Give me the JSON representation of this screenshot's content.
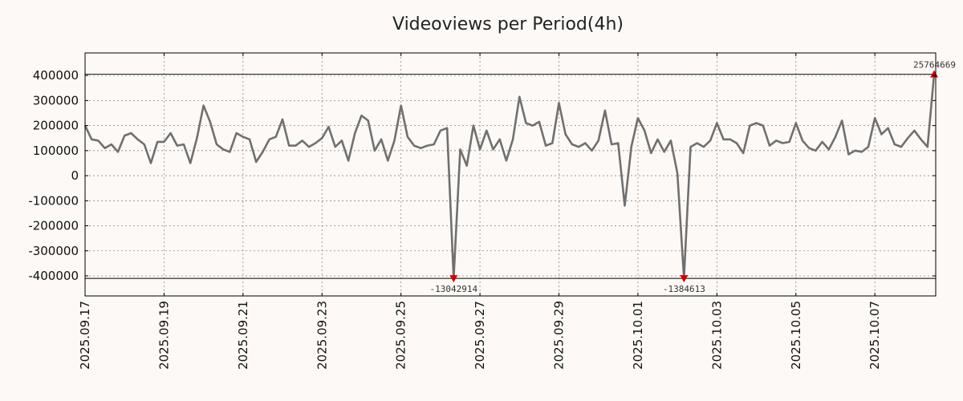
{
  "chart_data": {
    "type": "line",
    "title": "Videoviews per Period(4h)",
    "xlabel": "",
    "ylabel": "",
    "ylim": [
      -480000,
      490000
    ],
    "yticks": [
      400000,
      300000,
      200000,
      100000,
      0,
      -100000,
      -200000,
      -300000,
      -400000
    ],
    "ytick_labels": [
      "400000",
      "300000",
      "200000",
      "100000",
      "0",
      "-100000",
      "-200000",
      "-300000",
      "-400000"
    ],
    "xticks": [
      {
        "label": "2025.09.17",
        "i": 0
      },
      {
        "label": "2025.09.19",
        "i": 12
      },
      {
        "label": "2025.09.21",
        "i": 24
      },
      {
        "label": "2025.09.23",
        "i": 36
      },
      {
        "label": "2025.09.25",
        "i": 48
      },
      {
        "label": "2025.09.27",
        "i": 60
      },
      {
        "label": "2025.09.29",
        "i": 72
      },
      {
        "label": "2025.10.01",
        "i": 84
      },
      {
        "label": "2025.10.03",
        "i": 96
      },
      {
        "label": "2025.10.05",
        "i": 108
      },
      {
        "label": "2025.10.07",
        "i": 120
      }
    ],
    "clip_lines": {
      "upper": 405000,
      "lower": -410000
    },
    "series": [
      {
        "name": "Videoviews",
        "color": "#707070",
        "values": [
          200000,
          145000,
          140000,
          110000,
          125000,
          95000,
          160000,
          170000,
          145000,
          125000,
          50000,
          135000,
          135000,
          170000,
          120000,
          125000,
          50000,
          150000,
          280000,
          215000,
          125000,
          105000,
          95000,
          170000,
          155000,
          145000,
          55000,
          95000,
          145000,
          155000,
          225000,
          120000,
          120000,
          140000,
          115000,
          130000,
          150000,
          195000,
          115000,
          140000,
          60000,
          170000,
          240000,
          220000,
          100000,
          145000,
          60000,
          140000,
          280000,
          155000,
          120000,
          110000,
          120000,
          125000,
          180000,
          190000,
          -410000,
          105000,
          40000,
          200000,
          105000,
          180000,
          105000,
          145000,
          60000,
          145000,
          315000,
          210000,
          200000,
          215000,
          120000,
          130000,
          290000,
          165000,
          125000,
          115000,
          130000,
          100000,
          140000,
          260000,
          125000,
          130000,
          -120000,
          115000,
          230000,
          180000,
          90000,
          145000,
          95000,
          140000,
          10000,
          -410000,
          115000,
          130000,
          115000,
          140000,
          210000,
          145000,
          145000,
          130000,
          90000,
          200000,
          210000,
          200000,
          120000,
          140000,
          130000,
          135000,
          210000,
          140000,
          110000,
          100000,
          135000,
          105000,
          155000,
          220000,
          85000,
          100000,
          95000,
          115000,
          230000,
          165000,
          190000,
          125000,
          115000,
          150000,
          180000,
          145000,
          115000,
          405000
        ]
      }
    ],
    "markers": [
      {
        "i": 56,
        "value": -410000,
        "direction": "down",
        "label": "-13042914",
        "color": "#cc0000"
      },
      {
        "i": 91,
        "value": -410000,
        "direction": "down",
        "label": "-1384613",
        "color": "#cc0000"
      },
      {
        "i": 129,
        "value": 405000,
        "direction": "up",
        "label": "25764669",
        "color": "#cc0000"
      }
    ]
  }
}
